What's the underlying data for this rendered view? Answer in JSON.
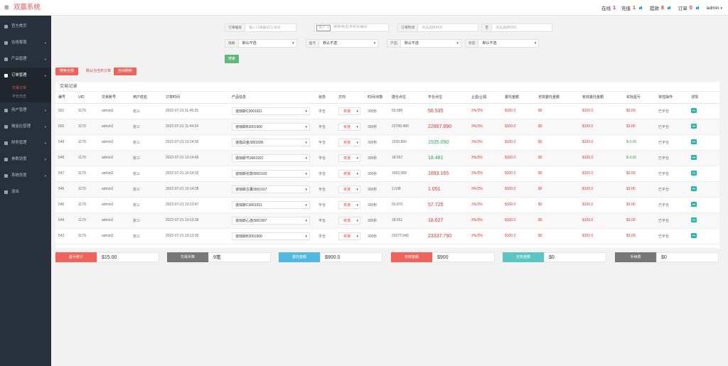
{
  "topbar": {
    "brand": "双赢系统",
    "stats": [
      {
        "label": "在线",
        "value": "1",
        "speaker": false
      },
      {
        "label": "充值",
        "value": "1",
        "speaker": true
      },
      {
        "label": "提款",
        "value": "8",
        "speaker": true
      },
      {
        "label": "订单",
        "value": "0",
        "speaker": true
      }
    ],
    "user": "admin"
  },
  "sidebar": {
    "items": [
      {
        "label": "官方首页",
        "arrow": ""
      },
      {
        "label": "在线客服",
        "arrow": "▾"
      },
      {
        "label": "产品管理",
        "arrow": "▾"
      },
      {
        "label": "订单管理",
        "arrow": "▾"
      },
      {
        "label": "用户管理",
        "arrow": "▾"
      },
      {
        "label": "佣金比管理",
        "arrow": "▾"
      },
      {
        "label": "财务管理",
        "arrow": "▾"
      },
      {
        "label": "参数设置",
        "arrow": "▾"
      },
      {
        "label": "系统设置",
        "arrow": "▾"
      },
      {
        "label": "退出",
        "arrow": ""
      }
    ],
    "subitems": [
      "交易订单",
      "平仓日志"
    ]
  },
  "filters": {
    "order_no_label": "订单编号",
    "order_no_placeholder": "输入订单编号/订单号",
    "customer_select": "客户",
    "customer_placeholder": "昵称/姓名/手机号/编号",
    "order_time_label": "订单时间",
    "order_time_placeholder": "点击选择时间",
    "to_label": "至",
    "to_placeholder": "点击选择时间",
    "fields": [
      {
        "label": "涨跌",
        "value": "默认不选"
      },
      {
        "label": "盈亏",
        "value": "默认不选"
      },
      {
        "label": "产品",
        "value": "默认不选"
      },
      {
        "label": "状态",
        "value": "默认不选"
      }
    ],
    "search_button": "搜索"
  },
  "actions": {
    "export_button": "搜索全部",
    "default_note": "默认为当天订单",
    "autorefresh_button": "自动刷新"
  },
  "panel": {
    "title": "交易记录",
    "headers": [
      "编号",
      "UID",
      "交易账号",
      "用户姓名",
      "订单时间",
      "产品信息",
      "状态",
      "方向",
      "时间/点数",
      "建仓点位",
      "平仓点位",
      "止盈/止损",
      "委托金额",
      "无效委托金额",
      "有效委托金额",
      "实际盈亏",
      "单控操作",
      "详情"
    ],
    "rows": [
      {
        "id": "551",
        "uid": "1179",
        "account": "admin2",
        "name": "张三",
        "time": "2022-07-21 11:45:25",
        "product": "道琼斯C3001911",
        "status": "平仓",
        "direction": "买涨",
        "duration": "300秒",
        "open": "55.680",
        "close": "56.535",
        "close_color": "red",
        "stop": "3%/3%",
        "amount": "$100.0",
        "invalid": "$0",
        "valid": "$100.0",
        "pnl": "$3.00",
        "pnl_color": "red",
        "control": "已平仓"
      },
      {
        "id": "550",
        "uid": "1179",
        "account": "admin2",
        "name": "张三",
        "time": "2022-07-21 11:44:34",
        "product": "道琼斯B3001909",
        "status": "平仓",
        "direction": "买涨",
        "duration": "300秒",
        "open": "22789.480",
        "close": "22857.890",
        "close_color": "red",
        "stop": "3%/3%",
        "amount": "$100.0",
        "invalid": "$0",
        "valid": "$100.0",
        "pnl": "$3.00",
        "pnl_color": "red",
        "control": "已平仓"
      },
      {
        "id": "549",
        "uid": "1179",
        "account": "admin2",
        "name": "张三",
        "time": "2022-07-21 10:14:55",
        "product": "道指白金3001836",
        "status": "平仓",
        "direction": "买涨",
        "duration": "300秒",
        "open": "1535.890",
        "close": "1535.090",
        "close_color": "green",
        "stop": "3%/3%",
        "amount": "$100.0",
        "invalid": "$0",
        "valid": "$100.0",
        "pnl": "$-3.00",
        "pnl_color": "green",
        "control": "已平仓"
      },
      {
        "id": "548",
        "uid": "1179",
        "account": "admin2",
        "name": "张三",
        "time": "2022-07-21 10:14:45",
        "product": "道琼斯节3001922",
        "status": "平仓",
        "direction": "买涨",
        "duration": "300秒",
        "open": "18.557",
        "close": "18.481",
        "close_color": "green",
        "stop": "3%/3%",
        "amount": "$100.0",
        "invalid": "$0",
        "valid": "$100.0",
        "pnl": "$-3.00",
        "pnl_color": "green",
        "control": "已平仓"
      },
      {
        "id": "547",
        "uid": "1179",
        "account": "admin2",
        "name": "张三",
        "time": "2022-07-21 10:14:32",
        "product": "道琼斯伦敦3001910",
        "status": "平仓",
        "direction": "买涨",
        "duration": "300秒",
        "open": "1693.089",
        "close": "1693.165",
        "close_color": "red",
        "stop": "3%/3%",
        "amount": "$100.0",
        "invalid": "$0",
        "valid": "$100.0",
        "pnl": "$3.00",
        "pnl_color": "red",
        "control": "已平仓"
      },
      {
        "id": "546",
        "uid": "1179",
        "account": "admin2",
        "name": "张三",
        "time": "2022-07-21 10:14:08",
        "product": "道琼斯古董3001917",
        "status": "平仓",
        "direction": "买涨",
        "duration": "300秒",
        "open": "1.038",
        "close": "1.051",
        "close_color": "red",
        "stop": "3%/3%",
        "amount": "$100.0",
        "invalid": "$0",
        "valid": "$100.0",
        "pnl": "$3.00",
        "pnl_color": "red",
        "control": "已平仓"
      },
      {
        "id": "545",
        "uid": "1179",
        "account": "admin2",
        "name": "张三",
        "time": "2022-07-21 10:13:47",
        "product": "道琼斯C3001911",
        "status": "平仓",
        "direction": "买涨",
        "duration": "300秒",
        "open": "56.870",
        "close": "57.725",
        "close_color": "red",
        "stop": "3%/3%",
        "amount": "$100.0",
        "invalid": "$0",
        "valid": "$100.0",
        "pnl": "$3.00",
        "pnl_color": "red",
        "control": "已平仓"
      },
      {
        "id": "544",
        "uid": "1179",
        "account": "admin2",
        "name": "张三",
        "time": "2022-07-21 10:13:39",
        "product": "道琼斯心连3001907",
        "status": "平仓",
        "direction": "买涨",
        "duration": "300秒",
        "open": "18.551",
        "close": "18.627",
        "close_color": "red",
        "stop": "3%/3%",
        "amount": "$100.0",
        "invalid": "$0",
        "valid": "$100.0",
        "pnl": "$3.00",
        "pnl_color": "red",
        "control": "已平仓"
      },
      {
        "id": "543",
        "uid": "1179",
        "account": "admin2",
        "name": "张三",
        "time": "2022-07-21 10:13:30",
        "product": "道琼斯B3001909",
        "status": "平仓",
        "direction": "买涨",
        "duration": "300秒",
        "open": "23277.940",
        "close": "23337.790",
        "close_color": "red",
        "stop": "3%/3%",
        "amount": "$100.0",
        "invalid": "$0",
        "valid": "$100.0",
        "pnl": "$3.00",
        "pnl_color": "red",
        "control": "已平仓"
      }
    ]
  },
  "summary": [
    {
      "label": "盈亏统计",
      "value": "$15.00",
      "color": "#f0625a"
    },
    {
      "label": "交易手数",
      "value": "9笔",
      "color": "#777777"
    },
    {
      "label": "委托金额",
      "value": "$900.0",
      "color": "#4fb9e3"
    },
    {
      "label": "有效金额",
      "value": "$900",
      "color": "#f0625a"
    },
    {
      "label": "无效金额",
      "value": "$0",
      "color": "#59c6c1"
    },
    {
      "label": "手续费",
      "value": "$0",
      "color": "#777777"
    }
  ]
}
